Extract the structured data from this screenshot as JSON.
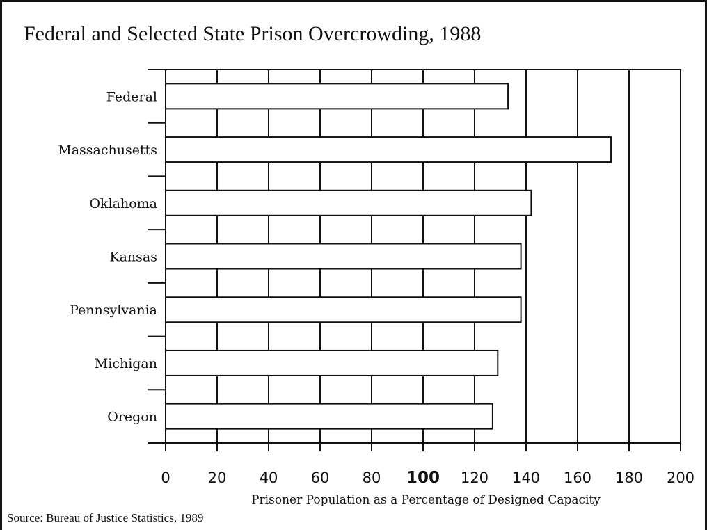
{
  "chart_data": {
    "type": "bar",
    "orientation": "horizontal",
    "title": "Federal and Selected State Prison Overcrowding, 1988",
    "xlabel": "Prisoner Population as a Percentage of Designed Capacity",
    "ylabel": "",
    "categories": [
      "Federal",
      "Massachusetts",
      "Oklahoma",
      "Kansas",
      "Pennsylvania",
      "Michigan",
      "Oregon"
    ],
    "values": [
      133,
      173,
      142,
      138,
      138,
      129,
      127
    ],
    "xlim": [
      0,
      200
    ],
    "xticks": [
      "0",
      "20",
      "40",
      "60",
      "80",
      "100",
      "120",
      "140",
      "160",
      "180",
      "200"
    ],
    "highlight_tick": "100",
    "grid": true,
    "bar_fill": "#ffffff",
    "bar_stroke": "#111111"
  },
  "source": "Source: Bureau of Justice Statistics, 1989"
}
